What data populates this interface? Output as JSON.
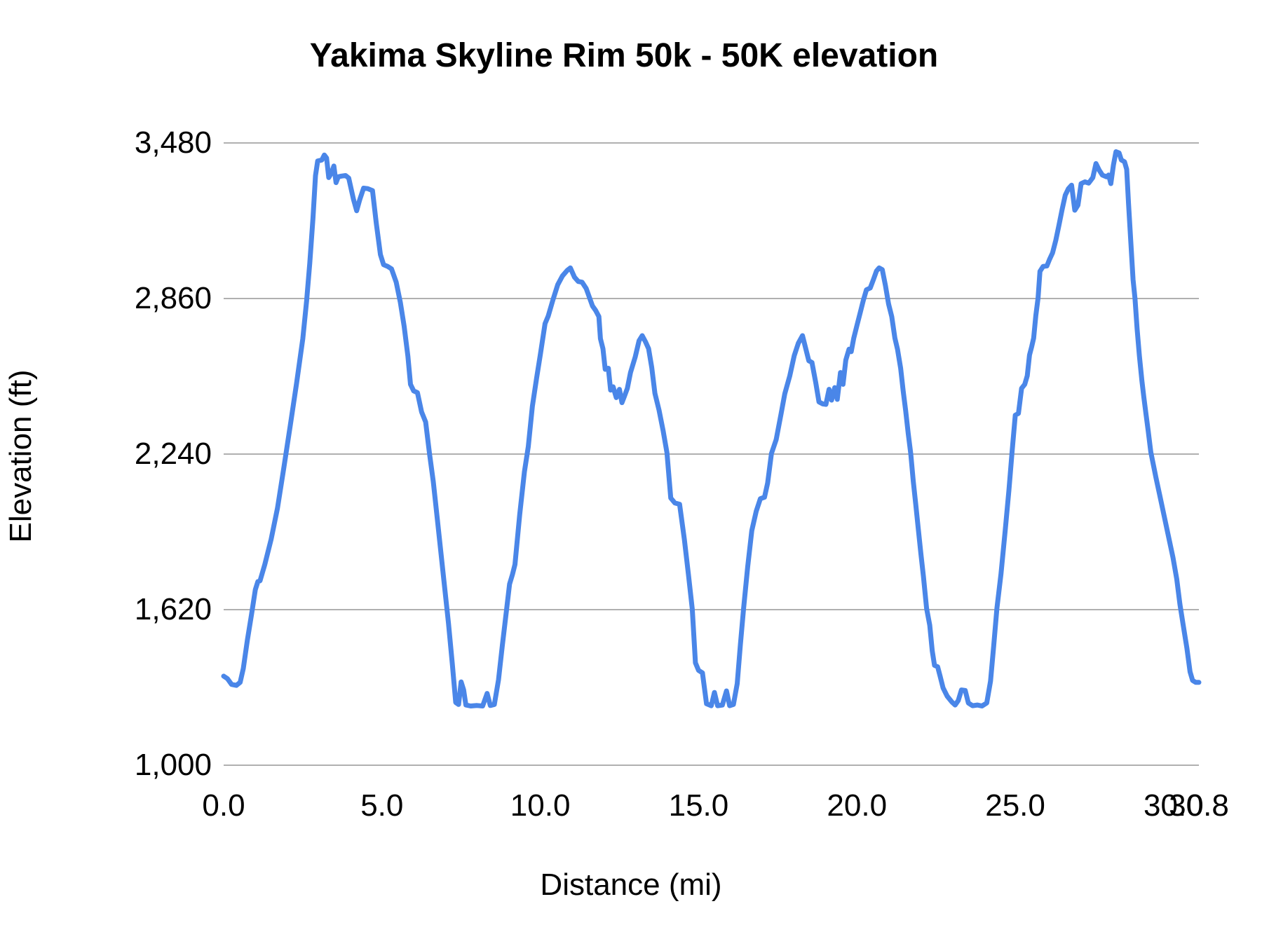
{
  "chart": {
    "title": "Yakima Skyline Rim 50k - 50K elevation",
    "x_axis": {
      "title": "Distance (mi)"
    },
    "y_axis": {
      "title": "Elevation (ft)"
    }
  },
  "colors": {
    "series_line": "#4a86e8",
    "gridline": "#b0b0b0",
    "text": "#000000",
    "background": "#ffffff"
  },
  "chart_data": {
    "type": "line",
    "title": "Yakima Skyline Rim 50k - 50K elevation",
    "xlabel": "Distance (mi)",
    "ylabel": "Elevation (ft)",
    "xlim": [
      0,
      30.8
    ],
    "ylim": [
      1000,
      3480
    ],
    "grid": "horizontal-only",
    "legend_position": "none",
    "y_ticks": [
      {
        "value": 3480,
        "label": "3,480"
      },
      {
        "value": 2860,
        "label": "2,860"
      },
      {
        "value": 2240,
        "label": "2,240"
      },
      {
        "value": 1620,
        "label": "1,620"
      },
      {
        "value": 1000,
        "label": "1,000"
      }
    ],
    "x_ticks": [
      {
        "value": 0.0,
        "label": "0.0"
      },
      {
        "value": 5.0,
        "label": "5.0"
      },
      {
        "value": 10.0,
        "label": "10.0"
      },
      {
        "value": 15.0,
        "label": "15.0"
      },
      {
        "value": 20.0,
        "label": "20.0"
      },
      {
        "value": 25.0,
        "label": "25.0"
      },
      {
        "value": 30.0,
        "label": "30.0"
      },
      {
        "value": 30.8,
        "label": "30.8"
      }
    ],
    "series": [
      {
        "name": "50K elevation",
        "points": [
          [
            0.0,
            1355
          ],
          [
            0.12,
            1345
          ],
          [
            0.25,
            1322
          ],
          [
            0.4,
            1318
          ],
          [
            0.52,
            1330
          ],
          [
            0.62,
            1385
          ],
          [
            0.75,
            1500
          ],
          [
            0.88,
            1600
          ],
          [
            1.0,
            1700
          ],
          [
            1.08,
            1732
          ],
          [
            1.15,
            1735
          ],
          [
            1.3,
            1800
          ],
          [
            1.5,
            1900
          ],
          [
            1.7,
            2025
          ],
          [
            1.9,
            2185
          ],
          [
            2.1,
            2350
          ],
          [
            2.3,
            2520
          ],
          [
            2.5,
            2700
          ],
          [
            2.62,
            2850
          ],
          [
            2.72,
            3000
          ],
          [
            2.82,
            3180
          ],
          [
            2.9,
            3350
          ],
          [
            2.97,
            3408
          ],
          [
            3.1,
            3412
          ],
          [
            3.18,
            3432
          ],
          [
            3.25,
            3420
          ],
          [
            3.32,
            3342
          ],
          [
            3.4,
            3360
          ],
          [
            3.48,
            3388
          ],
          [
            3.55,
            3322
          ],
          [
            3.62,
            3345
          ],
          [
            3.72,
            3348
          ],
          [
            3.85,
            3350
          ],
          [
            3.95,
            3340
          ],
          [
            4.1,
            3255
          ],
          [
            4.2,
            3210
          ],
          [
            4.3,
            3255
          ],
          [
            4.42,
            3300
          ],
          [
            4.55,
            3298
          ],
          [
            4.7,
            3290
          ],
          [
            4.82,
            3160
          ],
          [
            4.95,
            3035
          ],
          [
            5.05,
            2995
          ],
          [
            5.18,
            2988
          ],
          [
            5.3,
            2978
          ],
          [
            5.45,
            2925
          ],
          [
            5.58,
            2845
          ],
          [
            5.7,
            2750
          ],
          [
            5.82,
            2630
          ],
          [
            5.9,
            2518
          ],
          [
            6.0,
            2492
          ],
          [
            6.12,
            2485
          ],
          [
            6.25,
            2408
          ],
          [
            6.38,
            2368
          ],
          [
            6.5,
            2242
          ],
          [
            6.62,
            2130
          ],
          [
            6.75,
            1980
          ],
          [
            6.95,
            1742
          ],
          [
            7.1,
            1565
          ],
          [
            7.22,
            1405
          ],
          [
            7.33,
            1250
          ],
          [
            7.42,
            1242
          ],
          [
            7.5,
            1332
          ],
          [
            7.58,
            1300
          ],
          [
            7.65,
            1240
          ],
          [
            7.8,
            1236
          ],
          [
            8.0,
            1238
          ],
          [
            8.18,
            1236
          ],
          [
            8.32,
            1286
          ],
          [
            8.42,
            1238
          ],
          [
            8.55,
            1242
          ],
          [
            8.68,
            1340
          ],
          [
            8.8,
            1475
          ],
          [
            8.93,
            1615
          ],
          [
            9.03,
            1722
          ],
          [
            9.12,
            1760
          ],
          [
            9.2,
            1800
          ],
          [
            9.35,
            2000
          ],
          [
            9.5,
            2170
          ],
          [
            9.62,
            2270
          ],
          [
            9.75,
            2430
          ],
          [
            9.88,
            2540
          ],
          [
            10.0,
            2635
          ],
          [
            10.15,
            2760
          ],
          [
            10.25,
            2790
          ],
          [
            10.4,
            2855
          ],
          [
            10.55,
            2915
          ],
          [
            10.7,
            2950
          ],
          [
            10.85,
            2972
          ],
          [
            10.95,
            2982
          ],
          [
            11.08,
            2945
          ],
          [
            11.2,
            2928
          ],
          [
            11.32,
            2925
          ],
          [
            11.45,
            2900
          ],
          [
            11.55,
            2865
          ],
          [
            11.65,
            2830
          ],
          [
            11.75,
            2812
          ],
          [
            11.85,
            2788
          ],
          [
            11.9,
            2700
          ],
          [
            11.98,
            2660
          ],
          [
            12.05,
            2578
          ],
          [
            12.15,
            2582
          ],
          [
            12.22,
            2495
          ],
          [
            12.3,
            2508
          ],
          [
            12.4,
            2465
          ],
          [
            12.5,
            2498
          ],
          [
            12.58,
            2445
          ],
          [
            12.65,
            2468
          ],
          [
            12.75,
            2502
          ],
          [
            12.85,
            2565
          ],
          [
            13.0,
            2628
          ],
          [
            13.12,
            2692
          ],
          [
            13.22,
            2712
          ],
          [
            13.32,
            2688
          ],
          [
            13.42,
            2660
          ],
          [
            13.52,
            2585
          ],
          [
            13.62,
            2482
          ],
          [
            13.75,
            2415
          ],
          [
            13.88,
            2332
          ],
          [
            14.0,
            2245
          ],
          [
            14.12,
            2065
          ],
          [
            14.25,
            2045
          ],
          [
            14.4,
            2040
          ],
          [
            14.55,
            1900
          ],
          [
            14.68,
            1758
          ],
          [
            14.8,
            1622
          ],
          [
            14.9,
            1408
          ],
          [
            15.0,
            1378
          ],
          [
            15.12,
            1368
          ],
          [
            15.25,
            1245
          ],
          [
            15.4,
            1237
          ],
          [
            15.5,
            1290
          ],
          [
            15.6,
            1237
          ],
          [
            15.75,
            1240
          ],
          [
            15.88,
            1296
          ],
          [
            15.98,
            1237
          ],
          [
            16.1,
            1242
          ],
          [
            16.22,
            1325
          ],
          [
            16.32,
            1480
          ],
          [
            16.42,
            1625
          ],
          [
            16.55,
            1790
          ],
          [
            16.68,
            1935
          ],
          [
            16.82,
            2012
          ],
          [
            16.95,
            2062
          ],
          [
            17.08,
            2068
          ],
          [
            17.18,
            2125
          ],
          [
            17.3,
            2242
          ],
          [
            17.45,
            2298
          ],
          [
            17.6,
            2398
          ],
          [
            17.72,
            2480
          ],
          [
            17.88,
            2552
          ],
          [
            18.02,
            2632
          ],
          [
            18.15,
            2682
          ],
          [
            18.28,
            2712
          ],
          [
            18.38,
            2662
          ],
          [
            18.48,
            2612
          ],
          [
            18.58,
            2605
          ],
          [
            18.7,
            2525
          ],
          [
            18.8,
            2448
          ],
          [
            18.92,
            2440
          ],
          [
            19.02,
            2438
          ],
          [
            19.12,
            2498
          ],
          [
            19.2,
            2455
          ],
          [
            19.3,
            2505
          ],
          [
            19.38,
            2458
          ],
          [
            19.48,
            2565
          ],
          [
            19.56,
            2518
          ],
          [
            19.65,
            2615
          ],
          [
            19.75,
            2658
          ],
          [
            19.82,
            2648
          ],
          [
            19.9,
            2702
          ],
          [
            20.0,
            2752
          ],
          [
            20.1,
            2802
          ],
          [
            20.2,
            2852
          ],
          [
            20.3,
            2895
          ],
          [
            20.42,
            2902
          ],
          [
            20.52,
            2935
          ],
          [
            20.62,
            2970
          ],
          [
            20.7,
            2982
          ],
          [
            20.8,
            2975
          ],
          [
            20.9,
            2912
          ],
          [
            21.0,
            2838
          ],
          [
            21.1,
            2788
          ],
          [
            21.2,
            2702
          ],
          [
            21.28,
            2658
          ],
          [
            21.38,
            2582
          ],
          [
            21.46,
            2492
          ],
          [
            21.54,
            2412
          ],
          [
            21.62,
            2322
          ],
          [
            21.7,
            2242
          ],
          [
            21.78,
            2132
          ],
          [
            21.86,
            2038
          ],
          [
            21.94,
            1938
          ],
          [
            22.02,
            1842
          ],
          [
            22.1,
            1752
          ],
          [
            22.2,
            1625
          ],
          [
            22.3,
            1558
          ],
          [
            22.38,
            1455
          ],
          [
            22.45,
            1398
          ],
          [
            22.55,
            1392
          ],
          [
            22.62,
            1358
          ],
          [
            22.72,
            1308
          ],
          [
            22.85,
            1275
          ],
          [
            23.0,
            1252
          ],
          [
            23.1,
            1240
          ],
          [
            23.2,
            1258
          ],
          [
            23.3,
            1300
          ],
          [
            23.42,
            1298
          ],
          [
            23.52,
            1248
          ],
          [
            23.65,
            1237
          ],
          [
            23.8,
            1240
          ],
          [
            23.95,
            1236
          ],
          [
            24.1,
            1248
          ],
          [
            24.22,
            1335
          ],
          [
            24.32,
            1475
          ],
          [
            24.42,
            1625
          ],
          [
            24.55,
            1762
          ],
          [
            24.68,
            1932
          ],
          [
            24.8,
            2095
          ],
          [
            24.9,
            2248
          ],
          [
            25.0,
            2395
          ],
          [
            25.1,
            2402
          ],
          [
            25.2,
            2502
          ],
          [
            25.3,
            2518
          ],
          [
            25.38,
            2552
          ],
          [
            25.45,
            2635
          ],
          [
            25.52,
            2668
          ],
          [
            25.58,
            2702
          ],
          [
            25.65,
            2792
          ],
          [
            25.72,
            2862
          ],
          [
            25.78,
            2968
          ],
          [
            25.88,
            2988
          ],
          [
            26.0,
            2990
          ],
          [
            26.08,
            3015
          ],
          [
            26.18,
            3042
          ],
          [
            26.28,
            3092
          ],
          [
            26.38,
            3152
          ],
          [
            26.48,
            3215
          ],
          [
            26.58,
            3272
          ],
          [
            26.68,
            3298
          ],
          [
            26.78,
            3312
          ],
          [
            26.88,
            3212
          ],
          [
            26.98,
            3232
          ],
          [
            27.08,
            3318
          ],
          [
            27.2,
            3325
          ],
          [
            27.32,
            3320
          ],
          [
            27.45,
            3342
          ],
          [
            27.55,
            3398
          ],
          [
            27.65,
            3372
          ],
          [
            27.75,
            3352
          ],
          [
            27.88,
            3345
          ],
          [
            27.95,
            3352
          ],
          [
            28.02,
            3318
          ],
          [
            28.1,
            3392
          ],
          [
            28.18,
            3445
          ],
          [
            28.28,
            3440
          ],
          [
            28.35,
            3412
          ],
          [
            28.45,
            3405
          ],
          [
            28.52,
            3375
          ],
          [
            28.58,
            3235
          ],
          [
            28.65,
            3085
          ],
          [
            28.72,
            2935
          ],
          [
            28.78,
            2862
          ],
          [
            28.85,
            2738
          ],
          [
            28.92,
            2632
          ],
          [
            29.0,
            2532
          ],
          [
            29.06,
            2468
          ],
          [
            29.13,
            2398
          ],
          [
            29.2,
            2332
          ],
          [
            29.28,
            2248
          ],
          [
            29.36,
            2198
          ],
          [
            29.44,
            2148
          ],
          [
            29.56,
            2078
          ],
          [
            29.7,
            1995
          ],
          [
            29.84,
            1912
          ],
          [
            29.98,
            1828
          ],
          [
            30.1,
            1742
          ],
          [
            30.2,
            1642
          ],
          [
            30.3,
            1562
          ],
          [
            30.42,
            1468
          ],
          [
            30.52,
            1372
          ],
          [
            30.6,
            1338
          ],
          [
            30.7,
            1330
          ],
          [
            30.8,
            1330
          ]
        ]
      }
    ]
  }
}
